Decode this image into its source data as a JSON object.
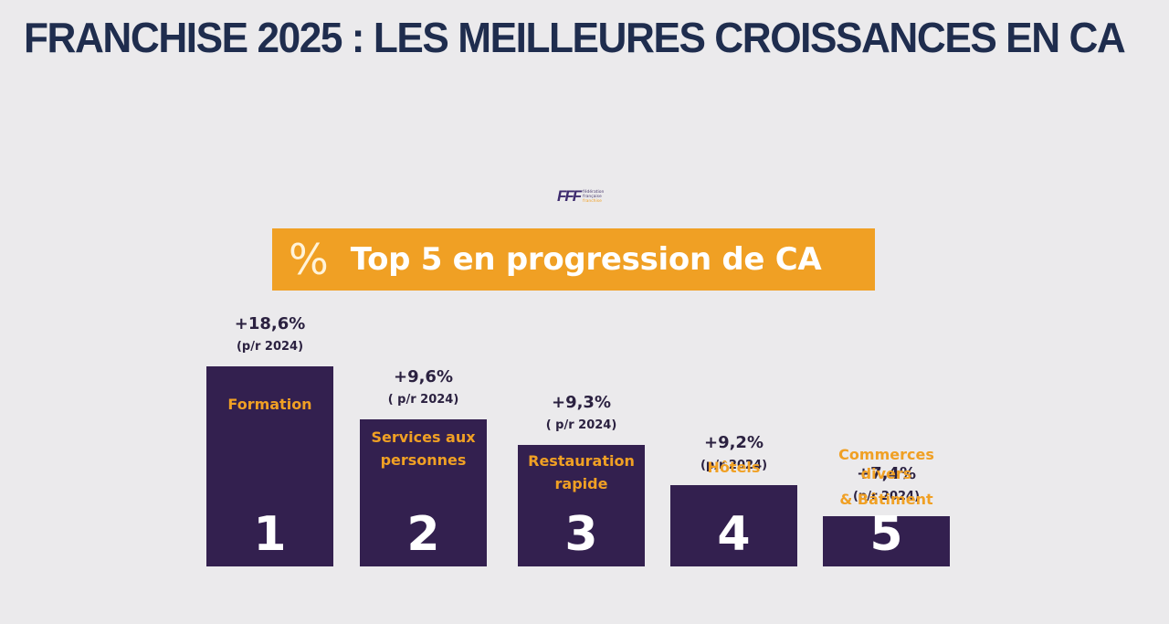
{
  "headline": "FRANCHISE 2025 : LES MEILLEURES CROISSANCES EN CA",
  "logo": {
    "mark": "FFF",
    "lines": [
      "fédération",
      "française",
      "franchise"
    ]
  },
  "banner": {
    "icon": "%",
    "title": "Top 5 en progression de CA"
  },
  "chart_data": {
    "type": "bar",
    "title": "Top 5 en progression de CA",
    "unit": "%",
    "categories": [
      "Formation",
      "Services aux personnes",
      "Restauration rapide",
      "Hôtels",
      "Commerces divers & Bâtiment"
    ],
    "values": [
      18.6,
      9.6,
      9.3,
      9.2,
      7.4
    ],
    "items": [
      {
        "rank": "1",
        "value_label": "+18,6%",
        "sub_label": "(p/r 2024)",
        "label_lines": [
          "Formation"
        ],
        "value": 18.6
      },
      {
        "rank": "2",
        "value_label": "+9,6%",
        "sub_label": "( p/r 2024)",
        "label_lines": [
          "Services aux",
          "personnes"
        ],
        "value": 9.6
      },
      {
        "rank": "3",
        "value_label": "+9,3%",
        "sub_label": "( p/r 2024)",
        "label_lines": [
          "Restauration",
          "rapide"
        ],
        "value": 9.3
      },
      {
        "rank": "4",
        "value_label": "+9,2%",
        "sub_label": "(p/r 2024)",
        "label_lines": [
          "Hôtels"
        ],
        "value": 9.2
      },
      {
        "rank": "5",
        "value_label": "+7,4%",
        "sub_label": "(p/r 2024)",
        "label_lines": [
          "Commerces",
          "divers",
          "& Bâtiment"
        ],
        "value": 7.4
      }
    ],
    "colors": {
      "bar": "#33204f",
      "label": "#f0a024",
      "value": "#2b2140",
      "rank": "#ffffff"
    }
  }
}
